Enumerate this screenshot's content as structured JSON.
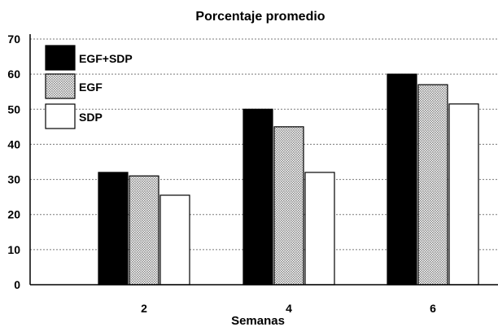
{
  "chart_data": {
    "type": "bar",
    "title": "Porcentaje promedio",
    "xlabel": "Semanas",
    "ylabel": "",
    "categories": [
      "2",
      "4",
      "6"
    ],
    "series": [
      {
        "name": "EGF+SDP",
        "values": [
          32,
          50,
          60
        ],
        "fill": "solid-black"
      },
      {
        "name": "EGF",
        "values": [
          31,
          45,
          57
        ],
        "fill": "dotted-gray"
      },
      {
        "name": "SDP",
        "values": [
          25.5,
          32,
          51.5
        ],
        "fill": "white"
      }
    ],
    "ylim": [
      0,
      70
    ],
    "yticks": [
      "0",
      "10",
      "20",
      "30",
      "40",
      "50",
      "60",
      "70"
    ],
    "grid": true,
    "legend": "top-left"
  },
  "colors": {
    "black": "#000000",
    "white": "#ffffff",
    "gray_dot": "#8c8c8c",
    "grid": "#7a7a7a"
  }
}
